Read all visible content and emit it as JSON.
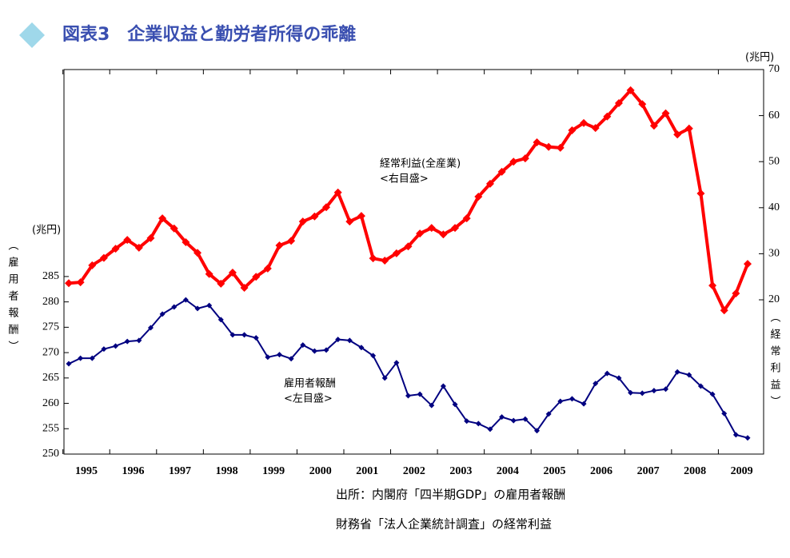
{
  "chart_data": {
    "type": "line",
    "title": "図表3　企業収益と勤労者所得の乖離",
    "y_unit": "(兆円)",
    "y2_unit": "(兆円)",
    "y_label": "（雇用者報酬）",
    "y2_label": "（経常利益）",
    "annotations": [
      "<右目盛>",
      "<左目盛>"
    ],
    "source": [
      "出所：内閣府「四半期GDP」の雇用者報酬",
      "財務省「法人企業統計調査」の経常利益"
    ],
    "categories": [
      "1995",
      null,
      null,
      null,
      "1996",
      null,
      null,
      null,
      "1997",
      null,
      null,
      null,
      "1998",
      null,
      null,
      null,
      "1999",
      null,
      null,
      null,
      "2000",
      null,
      null,
      null,
      "2001",
      null,
      null,
      null,
      "2002",
      null,
      null,
      null,
      "2003",
      null,
      null,
      null,
      "2004",
      null,
      null,
      null,
      "2005",
      null,
      null,
      null,
      "2006",
      null,
      null,
      null,
      "2007",
      null,
      null,
      null,
      "2008",
      null,
      null,
      null,
      "2009",
      null,
      null
    ],
    "ylim": [
      250,
      325.8
    ],
    "yticks": [
      250,
      255,
      260,
      265,
      270,
      275,
      280,
      285
    ],
    "y2lim": [
      -13.5,
      70
    ],
    "y2ticks": [
      20,
      30,
      40,
      50,
      60,
      70
    ],
    "series": [
      {
        "name": "経常利益(全産業)",
        "color": "#ff0000",
        "axis": "y2",
        "values": [
          23.6,
          23.8,
          27.5,
          29.1,
          31.1,
          33.0,
          31.3,
          33.4,
          37.7,
          35.5,
          32.5,
          30.2,
          25.6,
          23.5,
          25.9,
          22.6,
          25.0,
          26.8,
          31.8,
          32.8,
          37.0,
          38.1,
          40.1,
          43.3,
          37.0,
          38.2,
          29.0,
          28.5,
          30.1,
          31.6,
          34.4,
          35.6,
          34.2,
          35.6,
          37.7,
          42.4,
          45.2,
          47.8,
          50.0,
          50.7,
          54.2,
          53.2,
          53.0,
          56.8,
          58.4,
          57.3,
          59.8,
          62.7,
          65.5,
          62.5,
          57.8,
          60.5,
          55.9,
          57.2,
          43.1,
          23.1,
          17.7,
          21.4,
          27.8
        ]
      },
      {
        "name": "雇用者報酬",
        "color": "#000080",
        "values": [
          267.8,
          268.9,
          268.9,
          270.7,
          271.3,
          272.2,
          272.4,
          274.9,
          277.6,
          279.0,
          280.4,
          278.7,
          279.3,
          276.5,
          273.5,
          273.5,
          272.9,
          269.1,
          269.6,
          268.8,
          271.5,
          270.3,
          270.5,
          272.6,
          272.4,
          271.0,
          269.4,
          265.0,
          268.0,
          261.5,
          261.8,
          259.6,
          263.4,
          259.8,
          256.5,
          256.0,
          254.9,
          257.3,
          256.6,
          256.9,
          254.6,
          257.9,
          260.4,
          260.9,
          259.9,
          263.9,
          265.9,
          265.0,
          262.1,
          262.0,
          262.5,
          262.8,
          266.2,
          265.6,
          263.4,
          261.8,
          258.0,
          253.8,
          253.2
        ]
      }
    ]
  }
}
